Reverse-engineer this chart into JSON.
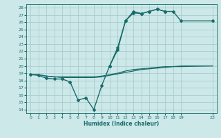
{
  "xlabel": "Humidex (Indice chaleur)",
  "bg_color": "#cce8e8",
  "grid_color": "#aacccc",
  "line_color": "#1a6b6b",
  "xlim": [
    -0.5,
    23.5
  ],
  "ylim": [
    13.5,
    28.5
  ],
  "yticks": [
    14,
    15,
    16,
    17,
    18,
    19,
    20,
    21,
    22,
    23,
    24,
    25,
    26,
    27,
    28
  ],
  "xticks": [
    0,
    1,
    2,
    3,
    4,
    5,
    6,
    7,
    8,
    9,
    10,
    11,
    12,
    13,
    14,
    15,
    16,
    17,
    18,
    19,
    23
  ],
  "series": [
    {
      "x": [
        0,
        1,
        2,
        3,
        4,
        5,
        6,
        7,
        8,
        9,
        10,
        11,
        12,
        13,
        14,
        15,
        16,
        17,
        18,
        19,
        23
      ],
      "y": [
        18.8,
        18.7,
        18.3,
        18.2,
        18.2,
        17.8,
        15.3,
        15.6,
        14.0,
        17.3,
        20.0,
        22.2,
        26.2,
        27.3,
        27.2,
        27.5,
        27.8,
        27.5,
        null,
        null,
        null
      ],
      "marker": "D",
      "markersize": 2.0,
      "lw": 1.0
    },
    {
      "x": [
        10,
        11,
        12,
        13,
        14,
        15,
        16,
        17,
        18,
        19,
        23
      ],
      "y": [
        20.0,
        22.5,
        26.2,
        27.5,
        27.2,
        27.5,
        27.8,
        27.5,
        27.5,
        26.2,
        26.2
      ],
      "marker": "D",
      "markersize": 2.0,
      "lw": 1.0
    },
    {
      "x": [
        0,
        1,
        2,
        3,
        4,
        5,
        6,
        7,
        8,
        9,
        10,
        11,
        12,
        13,
        14,
        15,
        16,
        17,
        18,
        19,
        23
      ],
      "y": [
        18.8,
        18.8,
        18.6,
        18.5,
        18.5,
        18.5,
        18.5,
        18.5,
        18.5,
        18.6,
        18.8,
        19.0,
        19.3,
        19.5,
        19.6,
        19.7,
        19.8,
        19.9,
        19.9,
        20.0,
        20.0
      ],
      "marker": null,
      "markersize": 0,
      "lw": 0.9
    },
    {
      "x": [
        0,
        1,
        2,
        3,
        4,
        5,
        6,
        7,
        8,
        9,
        10,
        11,
        12,
        13,
        14,
        15,
        16,
        17,
        18,
        19,
        23
      ],
      "y": [
        18.8,
        18.8,
        18.6,
        18.5,
        18.4,
        18.4,
        18.4,
        18.4,
        18.4,
        18.5,
        18.7,
        18.9,
        19.1,
        19.3,
        19.5,
        19.6,
        19.7,
        19.8,
        19.9,
        19.9,
        20.0
      ],
      "marker": null,
      "markersize": 0,
      "lw": 0.9
    }
  ]
}
